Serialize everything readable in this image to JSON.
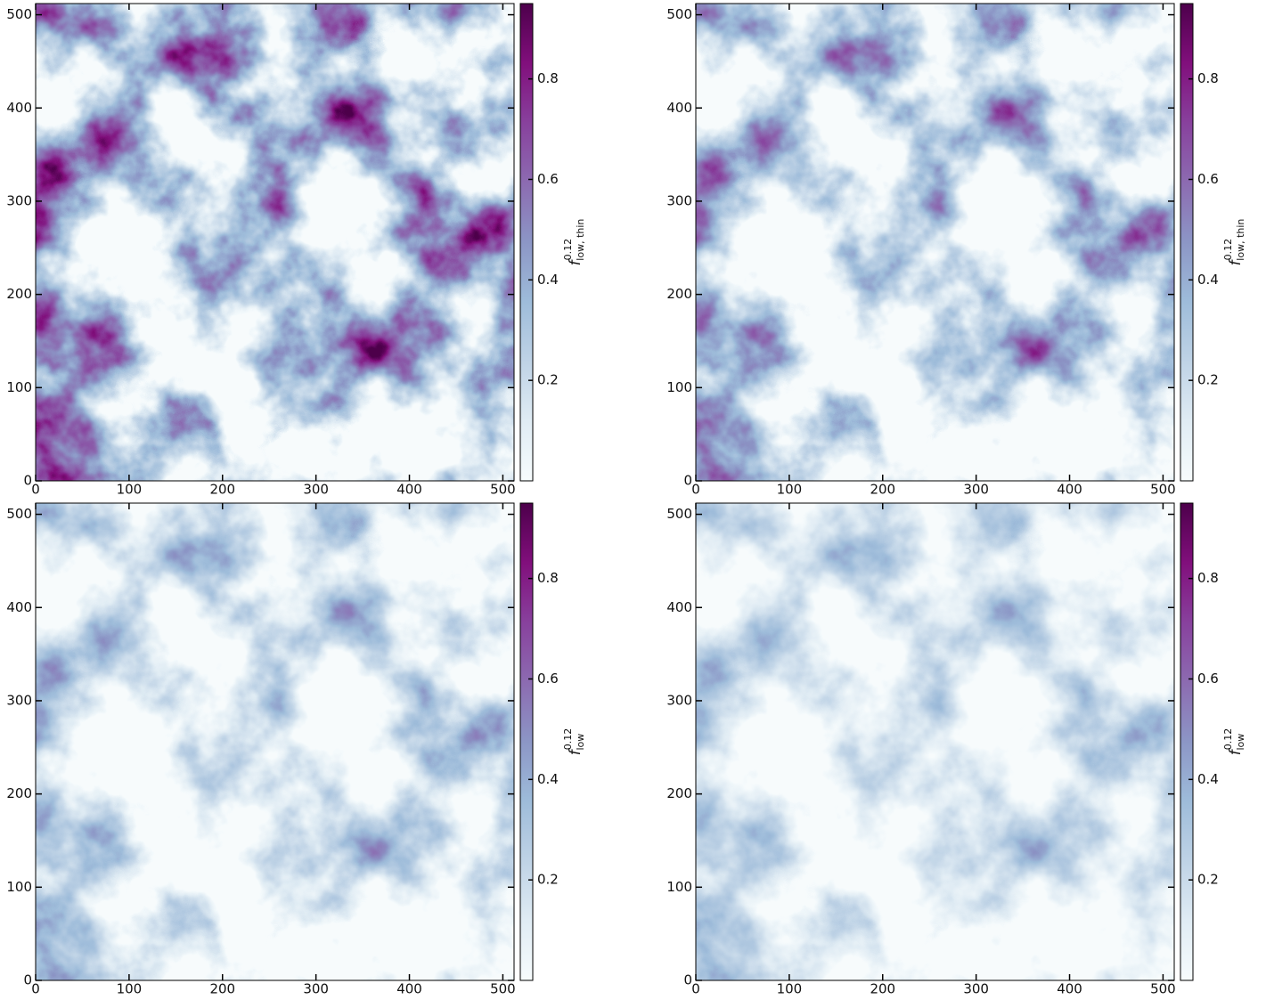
{
  "chart_data": [
    {
      "type": "heatmap",
      "xlim": [
        0,
        512
      ],
      "ylim": [
        0,
        512
      ],
      "xticks": [
        0,
        100,
        200,
        300,
        400,
        500
      ],
      "yticks": [
        0,
        100,
        200,
        300,
        400,
        500
      ],
      "colorbar": {
        "lim": [
          0,
          0.95
        ],
        "ticks": [
          0.2,
          0.4,
          0.6,
          0.8
        ],
        "label": {
          "base": "f",
          "superscript": "0.12",
          "subscript": "low, thin"
        },
        "colors": [
          "#f7fcfd",
          "#e0ecf4",
          "#bfd3e6",
          "#9ebcda",
          "#8c96c6",
          "#8c6bb1",
          "#88419d",
          "#810f7c",
          "#4d004b"
        ]
      }
    },
    {
      "type": "heatmap",
      "xlim": [
        0,
        512
      ],
      "ylim": [
        0,
        512
      ],
      "xticks": [
        0,
        100,
        200,
        300,
        400,
        500
      ],
      "yticks": [
        0,
        100,
        200,
        300,
        400,
        500
      ],
      "colorbar": {
        "lim": [
          0,
          0.95
        ],
        "ticks": [
          0.2,
          0.4,
          0.6,
          0.8
        ],
        "label": {
          "base": "f",
          "superscript": "0.12",
          "subscript": "low, thin"
        },
        "colors": [
          "#f7fcfd",
          "#e0ecf4",
          "#bfd3e6",
          "#9ebcda",
          "#8c96c6",
          "#8c6bb1",
          "#88419d",
          "#810f7c",
          "#4d004b"
        ]
      }
    },
    {
      "type": "heatmap",
      "xlim": [
        0,
        512
      ],
      "ylim": [
        0,
        512
      ],
      "xticks": [
        0,
        100,
        200,
        300,
        400,
        500
      ],
      "yticks": [
        0,
        100,
        200,
        300,
        400,
        500
      ],
      "colorbar": {
        "lim": [
          0,
          0.95
        ],
        "ticks": [
          0.2,
          0.4,
          0.6,
          0.8
        ],
        "label": {
          "base": "f",
          "superscript": "0.12",
          "subscript": "low"
        },
        "colors": [
          "#f7fcfd",
          "#e0ecf4",
          "#bfd3e6",
          "#9ebcda",
          "#8c96c6",
          "#8c6bb1",
          "#88419d",
          "#810f7c",
          "#4d004b"
        ]
      }
    },
    {
      "type": "heatmap",
      "xlim": [
        0,
        512
      ],
      "ylim": [
        0,
        512
      ],
      "xticks": [
        0,
        100,
        200,
        300,
        400,
        500
      ],
      "yticks": [
        0,
        100,
        200,
        300,
        400,
        500
      ],
      "colorbar": {
        "lim": [
          0,
          0.95
        ],
        "ticks": [
          0.2,
          0.4,
          0.6,
          0.8
        ],
        "label": {
          "base": "f",
          "superscript": "0.12",
          "subscript": "low"
        },
        "colors": [
          "#f7fcfd",
          "#e0ecf4",
          "#bfd3e6",
          "#9ebcda",
          "#8c96c6",
          "#8c6bb1",
          "#88419d",
          "#810f7c",
          "#4d004b"
        ]
      }
    }
  ]
}
